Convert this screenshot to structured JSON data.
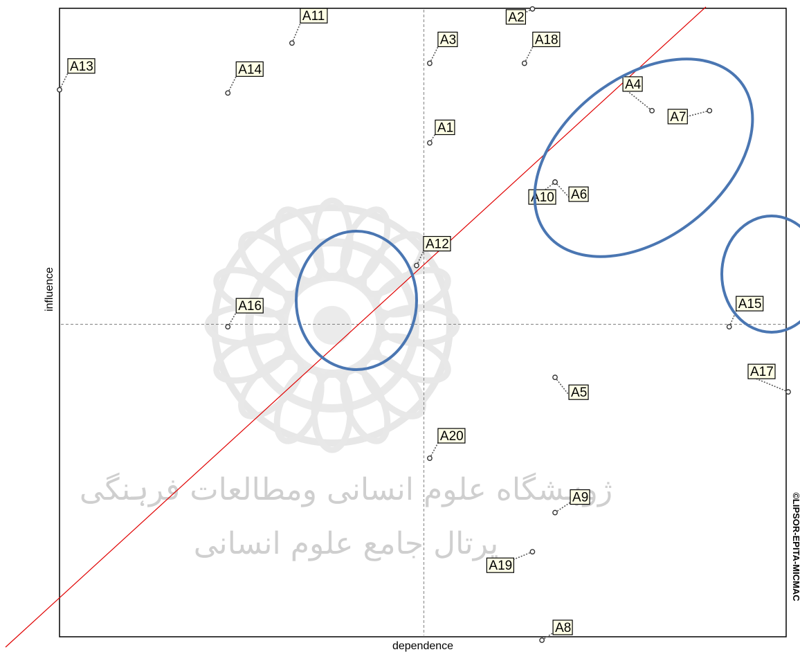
{
  "chart_data": {
    "type": "scatter",
    "xlabel": "dependence",
    "ylabel": "influence",
    "credit": "©LIPSOR-EPITA-MICMAC",
    "watermark": {
      "line1": "ژوہشگاه علوم انسانی ومطالعات فرہنگی",
      "line2": "پرتال جامع علوم انسانی"
    },
    "xlim": [
      0,
      100
    ],
    "ylim": [
      0,
      100
    ],
    "midlines": {
      "x": 50,
      "y": 50
    },
    "diagonal": true,
    "colors": {
      "points": "#555555",
      "diagonal": "#e00000",
      "highlight": "#4a76b2",
      "frame": "#000000"
    },
    "points": [
      {
        "label": "A1",
        "x": 50.8,
        "y": 78.7
      },
      {
        "label": "A2",
        "x": 64.9,
        "y": 99.9
      },
      {
        "label": "A3",
        "x": 50.8,
        "y": 91.3
      },
      {
        "label": "A4",
        "x": 81.3,
        "y": 83.8
      },
      {
        "label": "A5",
        "x": 68.0,
        "y": 41.6
      },
      {
        "label": "A6",
        "x": 68.0,
        "y": 72.5
      },
      {
        "label": "A7",
        "x": 89.2,
        "y": 83.8
      },
      {
        "label": "A8",
        "x": 66.2,
        "y": 0.0
      },
      {
        "label": "A9",
        "x": 68.0,
        "y": 20.2
      },
      {
        "label": "A10",
        "x": 68.0,
        "y": 72.5
      },
      {
        "label": "A11",
        "x": 31.9,
        "y": 94.5
      },
      {
        "label": "A12",
        "x": 49.0,
        "y": 59.3
      },
      {
        "label": "A13",
        "x": 0.0,
        "y": 87.1
      },
      {
        "label": "A14",
        "x": 23.1,
        "y": 86.6
      },
      {
        "label": "A15",
        "x": 91.9,
        "y": 49.6
      },
      {
        "label": "A16",
        "x": 23.1,
        "y": 49.6
      },
      {
        "label": "A17",
        "x": 100.0,
        "y": 39.3
      },
      {
        "label": "A18",
        "x": 63.8,
        "y": 91.3
      },
      {
        "label": "A19",
        "x": 64.9,
        "y": 14.0
      },
      {
        "label": "A20",
        "x": 50.8,
        "y": 28.8
      }
    ]
  }
}
